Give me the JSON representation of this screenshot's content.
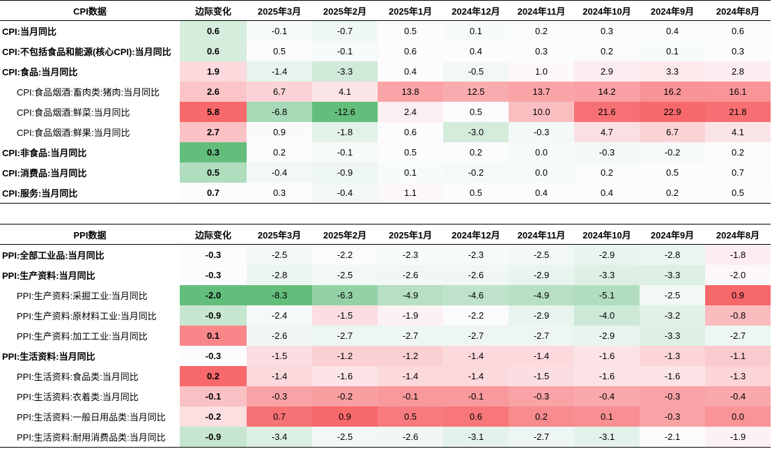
{
  "colors": {
    "red_strong": "#f7686b",
    "green_strong": "#63be7b",
    "neutral": "#fcfcff",
    "chg_red_strong": "#f8696b",
    "chg_green_strong": "#63be7b"
  },
  "cpi": {
    "header": [
      "CPI数据",
      "边际变化",
      "2025年3月",
      "2025年2月",
      "2025年1月",
      "2024年12月",
      "2024年11月",
      "2024年10月",
      "2024年9月",
      "2024年8月"
    ],
    "rows": [
      {
        "name": "CPI:当月同比",
        "level": 0,
        "change": "0.6",
        "values": [
          "-0.1",
          "-0.7",
          "0.5",
          "0.1",
          "0.2",
          "0.3",
          "0.4",
          "0.6"
        ]
      },
      {
        "name": "CPI:不包括食品和能源(核心CPI):当月同比",
        "level": 0,
        "change": "0.6",
        "values": [
          "0.5",
          "-0.1",
          "0.6",
          "0.4",
          "0.3",
          "0.2",
          "0.1",
          "0.3"
        ]
      },
      {
        "name": "CPI:食品:当月同比",
        "level": 0,
        "change": "1.9",
        "values": [
          "-1.4",
          "-3.3",
          "0.4",
          "-0.5",
          "1.0",
          "2.9",
          "3.3",
          "2.8"
        ]
      },
      {
        "name": "CPI:食品烟酒:畜肉类:猪肉:当月同比",
        "level": 1,
        "change": "2.6",
        "values": [
          "6.7",
          "4.1",
          "13.8",
          "12.5",
          "13.7",
          "14.2",
          "16.2",
          "16.1"
        ]
      },
      {
        "name": "CPI:食品烟酒:鲜菜:当月同比",
        "level": 1,
        "change": "5.8",
        "values": [
          "-6.8",
          "-12.6",
          "2.4",
          "0.5",
          "10.0",
          "21.6",
          "22.9",
          "21.8"
        ]
      },
      {
        "name": "CPI:食品烟酒:鲜果:当月同比",
        "level": 1,
        "change": "2.7",
        "values": [
          "0.9",
          "-1.8",
          "0.6",
          "-3.0",
          "-0.3",
          "4.7",
          "6.7",
          "4.1"
        ]
      },
      {
        "name": "CPI:非食品:当月同比",
        "level": 0,
        "change": "0.3",
        "values": [
          "0.2",
          "-0.1",
          "0.5",
          "0.2",
          "0.0",
          "-0.3",
          "-0.2",
          "0.2"
        ]
      },
      {
        "name": "CPI:消费品:当月同比",
        "level": 0,
        "change": "0.5",
        "values": [
          "-0.4",
          "-0.9",
          "0.1",
          "-0.2",
          "0.0",
          "0.2",
          "0.5",
          "0.7"
        ]
      },
      {
        "name": "CPI:服务:当月同比",
        "level": 0,
        "change": "0.7",
        "values": [
          "0.3",
          "-0.4",
          "1.1",
          "0.5",
          "0.4",
          "0.4",
          "0.2",
          "0.5"
        ]
      }
    ]
  },
  "ppi": {
    "header": [
      "PPI数据",
      "边际变化",
      "2025年3月",
      "2025年2月",
      "2025年1月",
      "2024年12月",
      "2024年11月",
      "2024年10月",
      "2024年9月",
      "2024年8月"
    ],
    "rows": [
      {
        "name": "PPI:全部工业品:当月同比",
        "level": 0,
        "change": "-0.3",
        "values": [
          "-2.5",
          "-2.2",
          "-2.3",
          "-2.3",
          "-2.5",
          "-2.9",
          "-2.8",
          "-1.8"
        ]
      },
      {
        "name": "PPI:生产资料:当月同比",
        "level": 0,
        "change": "-0.3",
        "values": [
          "-2.8",
          "-2.5",
          "-2.6",
          "-2.6",
          "-2.9",
          "-3.3",
          "-3.3",
          "-2.0"
        ]
      },
      {
        "name": "PPI:生产资料:采掘工业:当月同比",
        "level": 1,
        "change": "-2.0",
        "values": [
          "-8.3",
          "-6.3",
          "-4.9",
          "-4.6",
          "-4.9",
          "-5.1",
          "-2.5",
          "0.9"
        ]
      },
      {
        "name": "PPI:生产资料:原材料工业:当月同比",
        "level": 1,
        "change": "-0.9",
        "values": [
          "-2.4",
          "-1.5",
          "-1.9",
          "-2.2",
          "-2.9",
          "-4.0",
          "-3.2",
          "-0.8"
        ]
      },
      {
        "name": "PPI:生产资料:加工工业:当月同比",
        "level": 1,
        "change": "0.1",
        "values": [
          "-2.6",
          "-2.7",
          "-2.7",
          "-2.7",
          "-2.7",
          "-2.9",
          "-3.3",
          "-2.7"
        ]
      },
      {
        "name": "PPI:生活资料:当月同比",
        "level": 0,
        "change": "-0.3",
        "values": [
          "-1.5",
          "-1.2",
          "-1.2",
          "-1.4",
          "-1.4",
          "-1.6",
          "-1.3",
          "-1.1"
        ]
      },
      {
        "name": "PPI:生活资料:食品类:当月同比",
        "level": 1,
        "change": "0.2",
        "values": [
          "-1.4",
          "-1.6",
          "-1.4",
          "-1.4",
          "-1.5",
          "-1.6",
          "-1.6",
          "-1.3"
        ]
      },
      {
        "name": "PPI:生活资料:衣着类:当月同比",
        "level": 1,
        "change": "-0.1",
        "values": [
          "-0.3",
          "-0.2",
          "-0.1",
          "-0.1",
          "-0.3",
          "-0.4",
          "-0.3",
          "-0.4"
        ]
      },
      {
        "name": "PPI:生活资料:一般日用品类:当月同比",
        "level": 1,
        "change": "-0.2",
        "values": [
          "0.7",
          "0.9",
          "0.5",
          "0.6",
          "0.2",
          "0.1",
          "-0.3",
          "0.0"
        ]
      },
      {
        "name": "PPI:生活资料:耐用消费品类:当月同比",
        "level": 1,
        "change": "-0.9",
        "values": [
          "-3.4",
          "-2.5",
          "-2.6",
          "-3.1",
          "-2.7",
          "-3.1",
          "-2.1",
          "-1.9"
        ]
      }
    ]
  }
}
